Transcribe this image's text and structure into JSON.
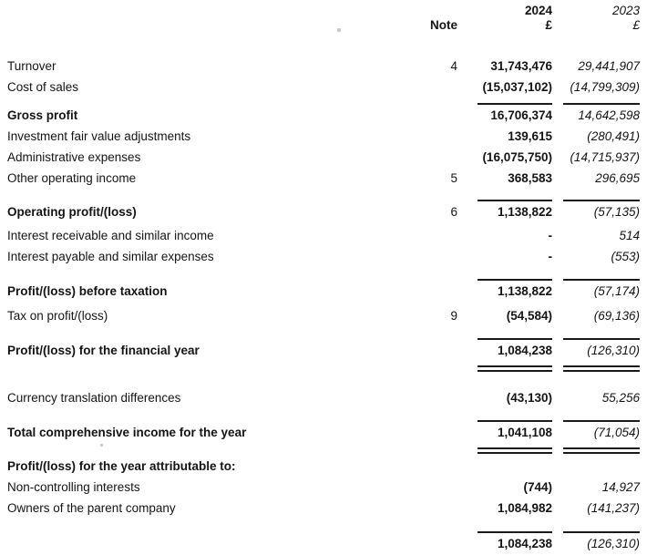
{
  "page": {
    "background": "#ffffff",
    "text_color": "#141414",
    "rule_color": "#1a1a1a"
  },
  "header": {
    "note_label": "Note",
    "year_2024": "2024",
    "currency_2024": "£",
    "year_2023": "2023",
    "currency_2023": "£"
  },
  "rows": [
    {
      "label": "Turnover",
      "note": "4",
      "v2024": "31,743,476",
      "v2023": "29,441,907"
    },
    {
      "label": "Cost of sales",
      "note": "",
      "v2024": "(15,037,102)",
      "v2023": "(14,799,309)"
    },
    {
      "label": "Gross profit",
      "note": "",
      "v2024": "16,706,374",
      "v2023": "14,642,598"
    },
    {
      "label": "Investment fair value adjustments",
      "note": "",
      "v2024": "139,615",
      "v2023": "(280,491)"
    },
    {
      "label": "Administrative expenses",
      "note": "",
      "v2024": "(16,075,750)",
      "v2023": "(14,715,937)"
    },
    {
      "label": "Other operating income",
      "note": "5",
      "v2024": "368,583",
      "v2023": "296,695"
    },
    {
      "label": "Operating profit/(loss)",
      "note": "6",
      "v2024": "1,138,822",
      "v2023": "(57,135)"
    },
    {
      "label": "Interest receivable and similar income",
      "note": "",
      "v2024": "-",
      "v2023": "514"
    },
    {
      "label": "Interest payable and similar expenses",
      "note": "",
      "v2024": "-",
      "v2023": "(553)"
    },
    {
      "label": "Profit/(loss) before taxation",
      "note": "",
      "v2024": "1,138,822",
      "v2023": "(57,174)"
    },
    {
      "label": "Tax on profit/(loss)",
      "note": "9",
      "v2024": "(54,584)",
      "v2023": "(69,136)"
    },
    {
      "label": "Profit/(loss) for the financial year",
      "note": "",
      "v2024": "1,084,238",
      "v2023": "(126,310)"
    },
    {
      "label": "Currency translation differences",
      "note": "",
      "v2024": "(43,130)",
      "v2023": "55,256"
    },
    {
      "label": "Total comprehensive income for the year",
      "note": "",
      "v2024": "1,041,108",
      "v2023": "(71,054)"
    },
    {
      "label": "Profit/(loss) for the year attributable to:",
      "note": "",
      "v2024": "",
      "v2023": ""
    },
    {
      "label": "Non-controlling interests",
      "note": "",
      "v2024": "(744)",
      "v2023": "14,927"
    },
    {
      "label": "Owners of the parent company",
      "note": "",
      "v2024": "1,084,982",
      "v2023": "(141,237)"
    },
    {
      "label": "",
      "note": "",
      "v2024": "1,084,238",
      "v2023": "(126,310)"
    }
  ]
}
